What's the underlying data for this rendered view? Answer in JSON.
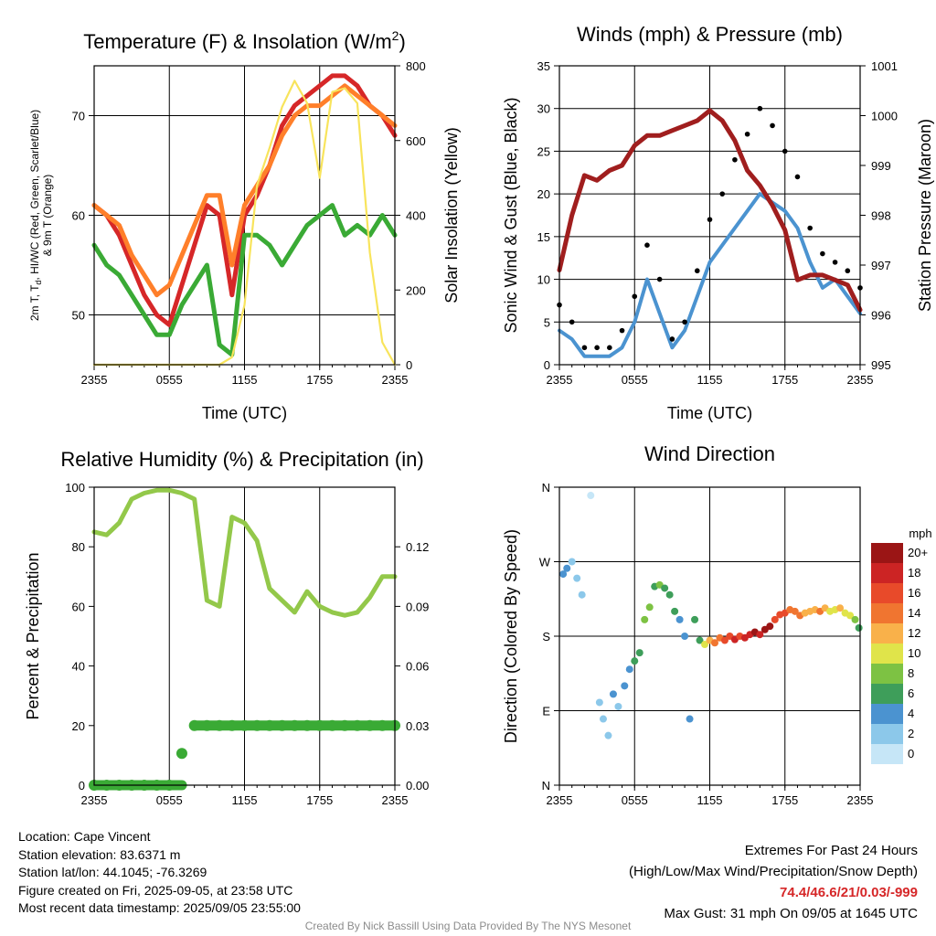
{
  "chart_data": [
    {
      "type": "line",
      "title": "Temperature (F) & Insolation (W/m²)",
      "ylabel_left": "2m T, Td, HI/WC (Red, Green, Scarlet/Blue) & 9m T (Orange)",
      "ylabel_right": "Solar Insolation (Yellow)",
      "xlabel": "Time (UTC)",
      "xticks": [
        "2355",
        "0555",
        "1155",
        "1755",
        "2355"
      ],
      "ylim": [
        45,
        75
      ],
      "yticks": [
        50,
        60,
        70
      ],
      "ylim_right": [
        0,
        800
      ],
      "yticks_right": [
        0,
        200,
        400,
        600,
        800
      ],
      "x_hours": [
        0,
        1,
        2,
        3,
        4,
        5,
        6,
        7,
        8,
        9,
        10,
        11,
        12,
        13,
        14,
        15,
        16,
        17,
        18,
        19,
        20,
        21,
        22,
        23,
        24
      ],
      "series": [
        {
          "name": "2m T",
          "color": "#d62728",
          "axis": "left",
          "values": [
            61,
            60,
            58,
            55,
            52,
            50,
            49,
            53,
            57,
            61,
            60,
            52,
            60,
            62,
            65,
            69,
            71,
            72,
            73,
            74,
            74,
            73,
            71,
            70,
            68
          ]
        },
        {
          "name": "9m T",
          "color": "#ff7f2a",
          "axis": "left",
          "values": [
            61,
            60,
            59,
            56,
            54,
            52,
            53,
            56,
            59,
            62,
            62,
            55,
            61,
            63,
            65,
            68,
            70,
            71,
            71,
            72,
            73,
            72,
            71,
            70,
            69
          ]
        },
        {
          "name": "Td",
          "color": "#3aaa35",
          "axis": "left",
          "values": [
            57,
            55,
            54,
            52,
            50,
            48,
            48,
            51,
            53,
            55,
            47,
            46,
            58,
            58,
            57,
            55,
            57,
            59,
            60,
            61,
            58,
            59,
            58,
            60,
            58
          ]
        },
        {
          "name": "Solar Insolation",
          "color": "#f8e45c",
          "axis": "right",
          "values": [
            0,
            0,
            0,
            0,
            0,
            0,
            0,
            0,
            0,
            0,
            0,
            20,
            160,
            480,
            580,
            690,
            760,
            700,
            500,
            730,
            740,
            700,
            300,
            60,
            0
          ]
        }
      ]
    },
    {
      "type": "line",
      "title": "Winds (mph) & Pressure (mb)",
      "ylabel_left": "Sonic Wind & Gust (Blue, Black)",
      "ylabel_right": "Station Pressure (Maroon)",
      "xlabel": "Time (UTC)",
      "xticks": [
        "2355",
        "0555",
        "1155",
        "1755",
        "2355"
      ],
      "ylim": [
        0,
        35
      ],
      "yticks": [
        0,
        5,
        10,
        15,
        20,
        25,
        30,
        35
      ],
      "ylim_right": [
        995,
        1001
      ],
      "yticks_right": [
        995,
        996,
        997,
        998,
        999,
        1000,
        1001
      ],
      "x_hours": [
        0,
        1,
        2,
        3,
        4,
        5,
        6,
        7,
        8,
        9,
        10,
        11,
        12,
        13,
        14,
        15,
        16,
        17,
        18,
        19,
        20,
        21,
        22,
        23,
        24
      ],
      "series": [
        {
          "name": "Sonic Wind",
          "color": "#4b93d0",
          "axis": "left",
          "values": [
            4,
            3,
            1,
            1,
            1,
            2,
            5,
            10,
            6,
            2,
            4,
            8,
            12,
            14,
            16,
            18,
            20,
            19,
            18,
            16,
            12,
            9,
            10,
            8,
            6
          ]
        },
        {
          "name": "Gust",
          "color": "#000000",
          "axis": "left",
          "values": [
            7,
            5,
            2,
            2,
            2,
            4,
            8,
            14,
            10,
            3,
            5,
            11,
            17,
            20,
            24,
            27,
            30,
            28,
            25,
            22,
            16,
            13,
            12,
            11,
            9
          ]
        },
        {
          "name": "Station Pressure",
          "color": "#a01e1e",
          "axis": "right",
          "values": [
            996.9,
            998.0,
            998.8,
            998.7,
            998.9,
            999.0,
            999.4,
            999.6,
            999.6,
            999.7,
            999.8,
            999.9,
            1000.1,
            999.9,
            999.5,
            998.9,
            998.6,
            998.2,
            997.7,
            996.7,
            996.8,
            996.8,
            996.7,
            996.6,
            996.1
          ]
        }
      ]
    },
    {
      "type": "line",
      "title": "Relative Humidity (%) & Precipitation (in)",
      "ylabel_left": "Percent & Precipitation",
      "xticks": [
        "2355",
        "0555",
        "1155",
        "1755",
        "2355"
      ],
      "ylim": [
        0,
        100
      ],
      "yticks": [
        0,
        20,
        40,
        60,
        80,
        100
      ],
      "ylim_right": [
        0,
        0.15
      ],
      "yticks_right": [
        "0.00",
        "0.03",
        "0.06",
        "0.09",
        "0.12"
      ],
      "x_hours": [
        0,
        1,
        2,
        3,
        4,
        5,
        6,
        7,
        8,
        9,
        10,
        11,
        12,
        13,
        14,
        15,
        16,
        17,
        18,
        19,
        20,
        21,
        22,
        23,
        24
      ],
      "series": [
        {
          "name": "Relative Humidity",
          "color": "#93c84a",
          "axis": "left",
          "values": [
            85,
            84,
            88,
            96,
            98,
            99,
            99,
            98,
            96,
            62,
            60,
            90,
            88,
            82,
            66,
            62,
            58,
            65,
            60,
            58,
            57,
            58,
            63,
            70,
            70
          ]
        },
        {
          "name": "Precipitation",
          "color": "#3aaa35",
          "axis": "right",
          "values": [
            0,
            0,
            0,
            0,
            0,
            0,
            0,
            0.016,
            0.03,
            0.03,
            0.03,
            0.03,
            0.03,
            0.03,
            0.03,
            0.03,
            0.03,
            0.03,
            0.03,
            0.03,
            0.03,
            0.03,
            0.03,
            0.03,
            0.03
          ]
        }
      ]
    },
    {
      "type": "scatter",
      "title": "Wind Direction",
      "ylabel_left": "Direction (Colored By Speed)",
      "xticks": [
        "2355",
        "0555",
        "1155",
        "1755",
        "2355"
      ],
      "yticks": [
        "N",
        "E",
        "S",
        "W",
        "N"
      ],
      "ylim": [
        0,
        360
      ],
      "colorbar_title": "mph",
      "colorbar_labels": [
        "0",
        "2",
        "4",
        "6",
        "8",
        "10",
        "12",
        "14",
        "16",
        "18",
        "20+"
      ],
      "colorbar_colors": [
        "#c6e6f7",
        "#8cc8ea",
        "#4b93d0",
        "#3e9e5a",
        "#7dc243",
        "#e0e44a",
        "#f9b14a",
        "#f07530",
        "#e84a2a",
        "#cc2424",
        "#9b1515"
      ],
      "points": [
        {
          "x": 0.3,
          "dir": 255,
          "spd": 4
        },
        {
          "x": 0.6,
          "dir": 262,
          "spd": 3
        },
        {
          "x": 1.0,
          "dir": 270,
          "spd": 2
        },
        {
          "x": 1.4,
          "dir": 250,
          "spd": 1
        },
        {
          "x": 1.8,
          "dir": 230,
          "spd": 1
        },
        {
          "x": 2.5,
          "dir": 350,
          "spd": 0
        },
        {
          "x": 3.2,
          "dir": 100,
          "spd": 2
        },
        {
          "x": 3.5,
          "dir": 80,
          "spd": 2
        },
        {
          "x": 3.9,
          "dir": 60,
          "spd": 1
        },
        {
          "x": 4.3,
          "dir": 110,
          "spd": 3
        },
        {
          "x": 4.7,
          "dir": 95,
          "spd": 2
        },
        {
          "x": 5.2,
          "dir": 120,
          "spd": 3
        },
        {
          "x": 5.6,
          "dir": 140,
          "spd": 4
        },
        {
          "x": 6.0,
          "dir": 150,
          "spd": 6
        },
        {
          "x": 6.4,
          "dir": 160,
          "spd": 5
        },
        {
          "x": 6.8,
          "dir": 200,
          "spd": 8
        },
        {
          "x": 7.2,
          "dir": 215,
          "spd": 7
        },
        {
          "x": 7.6,
          "dir": 240,
          "spd": 6
        },
        {
          "x": 8.0,
          "dir": 242,
          "spd": 7
        },
        {
          "x": 8.4,
          "dir": 238,
          "spd": 6
        },
        {
          "x": 8.8,
          "dir": 230,
          "spd": 5
        },
        {
          "x": 9.2,
          "dir": 210,
          "spd": 6
        },
        {
          "x": 9.6,
          "dir": 200,
          "spd": 4
        },
        {
          "x": 10.0,
          "dir": 180,
          "spd": 4
        },
        {
          "x": 10.4,
          "dir": 80,
          "spd": 3
        },
        {
          "x": 10.8,
          "dir": 200,
          "spd": 5
        },
        {
          "x": 11.2,
          "dir": 175,
          "spd": 6
        },
        {
          "x": 11.6,
          "dir": 170,
          "spd": 10
        },
        {
          "x": 12.0,
          "dir": 175,
          "spd": 12
        },
        {
          "x": 12.4,
          "dir": 172,
          "spd": 14
        },
        {
          "x": 12.8,
          "dir": 178,
          "spd": 13
        },
        {
          "x": 13.2,
          "dir": 175,
          "spd": 15
        },
        {
          "x": 13.6,
          "dir": 180,
          "spd": 16
        },
        {
          "x": 14.0,
          "dir": 176,
          "spd": 17
        },
        {
          "x": 14.4,
          "dir": 180,
          "spd": 16
        },
        {
          "x": 14.8,
          "dir": 178,
          "spd": 18
        },
        {
          "x": 15.2,
          "dir": 182,
          "spd": 17
        },
        {
          "x": 15.6,
          "dir": 185,
          "spd": 19
        },
        {
          "x": 16.0,
          "dir": 182,
          "spd": 18
        },
        {
          "x": 16.4,
          "dir": 188,
          "spd": 20
        },
        {
          "x": 16.8,
          "dir": 192,
          "spd": 19
        },
        {
          "x": 17.2,
          "dir": 200,
          "spd": 16
        },
        {
          "x": 17.6,
          "dir": 206,
          "spd": 15
        },
        {
          "x": 18.0,
          "dir": 208,
          "spd": 16
        },
        {
          "x": 18.4,
          "dir": 212,
          "spd": 14
        },
        {
          "x": 18.8,
          "dir": 210,
          "spd": 13
        },
        {
          "x": 19.2,
          "dir": 205,
          "spd": 14
        },
        {
          "x": 19.6,
          "dir": 208,
          "spd": 12
        },
        {
          "x": 20.0,
          "dir": 210,
          "spd": 11
        },
        {
          "x": 20.4,
          "dir": 212,
          "spd": 12
        },
        {
          "x": 20.8,
          "dir": 210,
          "spd": 13
        },
        {
          "x": 21.2,
          "dir": 214,
          "spd": 11
        },
        {
          "x": 21.6,
          "dir": 210,
          "spd": 10
        },
        {
          "x": 22.0,
          "dir": 212,
          "spd": 9
        },
        {
          "x": 22.4,
          "dir": 214,
          "spd": 12
        },
        {
          "x": 22.8,
          "dir": 208,
          "spd": 10
        },
        {
          "x": 23.2,
          "dir": 205,
          "spd": 9
        },
        {
          "x": 23.6,
          "dir": 200,
          "spd": 8
        },
        {
          "x": 23.9,
          "dir": 190,
          "spd": 6
        }
      ]
    }
  ],
  "axis_titles": {
    "temp_title_main": "Temperature (F) & Insolation (W/m",
    "temp_title_sup": "2",
    "temp_title_close": ")",
    "temp_ylabel_line1": "2m T, T",
    "temp_ylabel_sub": "d",
    "temp_ylabel_line1_rest": ", HI/WC (Red, Green, Scarlet/Blue)",
    "temp_ylabel_line2": "& 9m T (Orange)"
  },
  "info_left": {
    "location": "Location: Cape Vincent",
    "elevation": "Station elevation: 83.6371 m",
    "latlon": "Station lat/lon: 44.1045; -76.3269",
    "created": "Figure created on Fri, 2025-09-05, at 23:58 UTC",
    "recent": "Most recent data timestamp: 2025/09/05 23:55:00"
  },
  "info_right": {
    "heading": "Extremes For Past 24 Hours",
    "legend": "(High/Low/Max Wind/Precipitation/Snow Depth)",
    "values": "74.4/46.6/21/0.03/-999",
    "gust": "Max Gust: 31 mph On 09/05 at 1645 UTC"
  },
  "footer": "Created By Nick Bassill Using Data Provided By The NYS Mesonet"
}
